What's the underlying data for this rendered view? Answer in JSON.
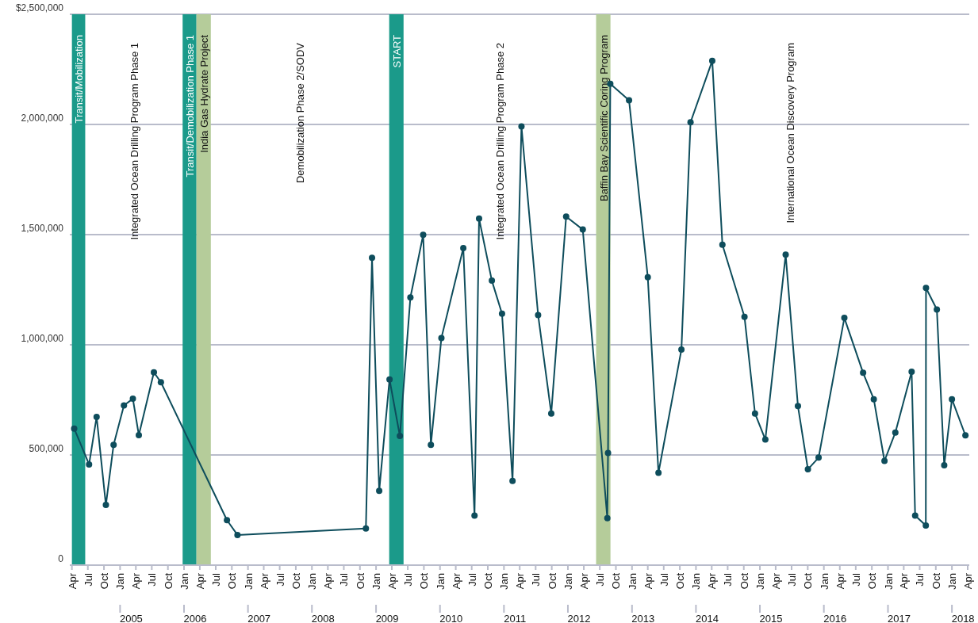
{
  "chart_data": {
    "type": "line",
    "color": "#0e4d5c",
    "marker": "circle",
    "line_style": "solid",
    "grid": "y",
    "x": [
      "2004-04-14",
      "2004-07-08",
      "2004-08-20",
      "2004-10-12",
      "2004-11-25",
      "2005-01-23",
      "2005-03-15",
      "2005-04-18",
      "2005-07-13",
      "2005-08-22",
      "2006-09-03",
      "2006-11-02",
      "2008-11-04",
      "2008-12-09",
      "2009-01-19",
      "2009-03-19",
      "2009-05-17",
      "2009-07-16",
      "2009-09-27",
      "2009-11-10",
      "2010-01-09",
      "2010-05-14",
      "2010-07-17",
      "2010-08-12",
      "2010-10-24",
      "2010-12-21",
      "2011-02-19",
      "2011-04-11",
      "2011-07-15",
      "2011-09-28",
      "2011-12-22",
      "2012-03-26",
      "2012-08-13",
      "2012-08-17",
      "2012-08-30",
      "2012-12-15",
      "2013-04-01",
      "2013-06-01",
      "2013-10-10",
      "2013-12-01",
      "2014-04-04",
      "2014-06-01",
      "2014-10-05",
      "2014-12-04",
      "2015-02-01",
      "2015-05-28",
      "2015-08-06",
      "2015-10-02",
      "2015-12-02",
      "2016-04-27",
      "2016-08-12",
      "2016-10-12",
      "2016-12-12",
      "2017-02-12",
      "2017-05-16",
      "2017-06-05",
      "2017-08-05",
      "2017-08-06",
      "2017-10-07",
      "2017-11-18",
      "2018-01-01",
      "2018-03-19"
    ],
    "values": [
      620000,
      457000,
      673000,
      273000,
      546000,
      725000,
      755000,
      590000,
      875000,
      830000,
      204000,
      137000,
      166000,
      1395000,
      337000,
      843000,
      586000,
      1215000,
      1499000,
      546000,
      1031000,
      1439000,
      225000,
      1573000,
      1291000,
      1141000,
      382000,
      1991000,
      1135000,
      688000,
      1582000,
      1523000,
      213000,
      509000,
      2184000,
      2110000,
      1307000,
      419000,
      978000,
      2010000,
      2289000,
      1454000,
      1127000,
      688000,
      570000,
      1409000,
      722000,
      435000,
      488000,
      1122000,
      873000,
      753000,
      473000,
      602000,
      878000,
      225000,
      180000,
      1258000,
      1160000,
      453000,
      753000,
      589000
    ],
    "xlim": [
      "2004-03-20",
      "2018-04-10"
    ],
    "xticks": [
      {
        "value": "2004-04-01",
        "label": "Apr"
      },
      {
        "value": "2004-07-01",
        "label": "Jul"
      },
      {
        "value": "2004-10-01",
        "label": "Oct"
      },
      {
        "value": "2005-01-01",
        "label": "Jan"
      },
      {
        "value": "2005-04-01",
        "label": "Apr"
      },
      {
        "value": "2005-07-01",
        "label": "Jul"
      },
      {
        "value": "2005-10-01",
        "label": "Oct"
      },
      {
        "value": "2006-01-01",
        "label": "Jan"
      },
      {
        "value": "2006-04-01",
        "label": "Apr"
      },
      {
        "value": "2006-07-01",
        "label": "Jul"
      },
      {
        "value": "2006-10-01",
        "label": "Oct"
      },
      {
        "value": "2007-01-01",
        "label": "Jan"
      },
      {
        "value": "2007-04-01",
        "label": "Apr"
      },
      {
        "value": "2007-07-01",
        "label": "Jul"
      },
      {
        "value": "2007-10-01",
        "label": "Oct"
      },
      {
        "value": "2008-01-01",
        "label": "Jan"
      },
      {
        "value": "2008-04-01",
        "label": "Apr"
      },
      {
        "value": "2008-07-01",
        "label": "Jul"
      },
      {
        "value": "2008-10-01",
        "label": "Oct"
      },
      {
        "value": "2009-01-01",
        "label": "Jan"
      },
      {
        "value": "2009-04-01",
        "label": "Apr"
      },
      {
        "value": "2009-07-01",
        "label": "Jul"
      },
      {
        "value": "2009-10-01",
        "label": "Oct"
      },
      {
        "value": "2010-01-01",
        "label": "Jan"
      },
      {
        "value": "2010-04-01",
        "label": "Apr"
      },
      {
        "value": "2010-07-01",
        "label": "Jul"
      },
      {
        "value": "2010-10-01",
        "label": "Oct"
      },
      {
        "value": "2011-01-01",
        "label": "Jan"
      },
      {
        "value": "2011-04-01",
        "label": "Apr"
      },
      {
        "value": "2011-07-01",
        "label": "Jul"
      },
      {
        "value": "2011-10-01",
        "label": "Oct"
      },
      {
        "value": "2012-01-01",
        "label": "Jan"
      },
      {
        "value": "2012-04-01",
        "label": "Apr"
      },
      {
        "value": "2012-07-01",
        "label": "Jul"
      },
      {
        "value": "2012-10-01",
        "label": "Oct"
      },
      {
        "value": "2013-01-01",
        "label": "Jan"
      },
      {
        "value": "2013-04-01",
        "label": "Apr"
      },
      {
        "value": "2013-07-01",
        "label": "Jul"
      },
      {
        "value": "2013-10-01",
        "label": "Oct"
      },
      {
        "value": "2014-01-01",
        "label": "Jan"
      },
      {
        "value": "2014-04-01",
        "label": "Apr"
      },
      {
        "value": "2014-07-01",
        "label": "Jul"
      },
      {
        "value": "2014-10-01",
        "label": "Oct"
      },
      {
        "value": "2015-01-01",
        "label": "Jan"
      },
      {
        "value": "2015-04-01",
        "label": "Apr"
      },
      {
        "value": "2015-07-01",
        "label": "Jul"
      },
      {
        "value": "2015-10-01",
        "label": "Oct"
      },
      {
        "value": "2016-01-01",
        "label": "Jan"
      },
      {
        "value": "2016-04-01",
        "label": "Apr"
      },
      {
        "value": "2016-07-01",
        "label": "Jul"
      },
      {
        "value": "2016-10-01",
        "label": "Oct"
      },
      {
        "value": "2017-01-01",
        "label": "Jan"
      },
      {
        "value": "2017-04-01",
        "label": "Apr"
      },
      {
        "value": "2017-07-01",
        "label": "Jul"
      },
      {
        "value": "2017-10-01",
        "label": "Oct"
      },
      {
        "value": "2018-01-01",
        "label": "Jan"
      },
      {
        "value": "2018-04-01",
        "label": "Apr"
      }
    ],
    "ylim": [
      0,
      2500000
    ],
    "yticks": [
      {
        "value": 0,
        "label": "0"
      },
      {
        "value": 500000,
        "label": "500,000"
      },
      {
        "value": 1000000,
        "label": "1,000,000"
      },
      {
        "value": 1500000,
        "label": "1,500,000"
      },
      {
        "value": 2000000,
        "label": "2,000,000"
      },
      {
        "value": 2500000,
        "label": "$2,500,000"
      }
    ],
    "bands": [
      {
        "axis": "x",
        "from": "2004-04-01",
        "to": "2004-06-16",
        "label": "Transit/Mobilization",
        "color": "#1b9a8a"
      },
      {
        "axis": "x",
        "from": "2005-12-24",
        "to": "2006-03-13",
        "label": "Transit/Demobilization Phase 1",
        "color": "#1b9a8a"
      },
      {
        "axis": "x",
        "from": "2006-03-13",
        "to": "2006-06-03",
        "label": "India Gas Hydrate Project",
        "color": "#b5cc9a"
      },
      {
        "axis": "x",
        "from": "2009-03-17",
        "to": "2009-06-07",
        "label": "START",
        "color": "#1b9a8a"
      },
      {
        "axis": "x",
        "from": "2012-06-10",
        "to": "2012-08-31",
        "label": "Baffin Bay Scientific Coring Program",
        "color": "#b5cc9a"
      }
    ],
    "x2lim": [
      "2005-01-01",
      "2018-01-01"
    ],
    "x2ticks": [
      {
        "value": "2005-01-01",
        "label": "2005"
      },
      {
        "value": "2006-01-01",
        "label": "2006"
      },
      {
        "value": "2007-01-01",
        "label": "2007"
      },
      {
        "value": "2008-01-01",
        "label": "2008"
      },
      {
        "value": "2009-01-01",
        "label": "2009"
      },
      {
        "value": "2010-01-01",
        "label": "2010"
      },
      {
        "value": "2011-01-01",
        "label": "2011"
      },
      {
        "value": "2012-01-01",
        "label": "2012"
      },
      {
        "value": "2013-01-01",
        "label": "2013"
      },
      {
        "value": "2014-01-01",
        "label": "2014"
      },
      {
        "value": "2015-01-01",
        "label": "2015"
      },
      {
        "value": "2016-01-01",
        "label": "2016"
      },
      {
        "value": "2017-01-01",
        "label": "2017"
      },
      {
        "value": "2018-01-01",
        "label": "2018"
      }
    ],
    "annotations": [
      "Integrated Ocean Drilling Program Phase 1",
      "Demobilization Phase 2/SODV",
      "Integrated Ocean Drilling Program Phase 2",
      "International Ocean Discovery Program"
    ]
  }
}
